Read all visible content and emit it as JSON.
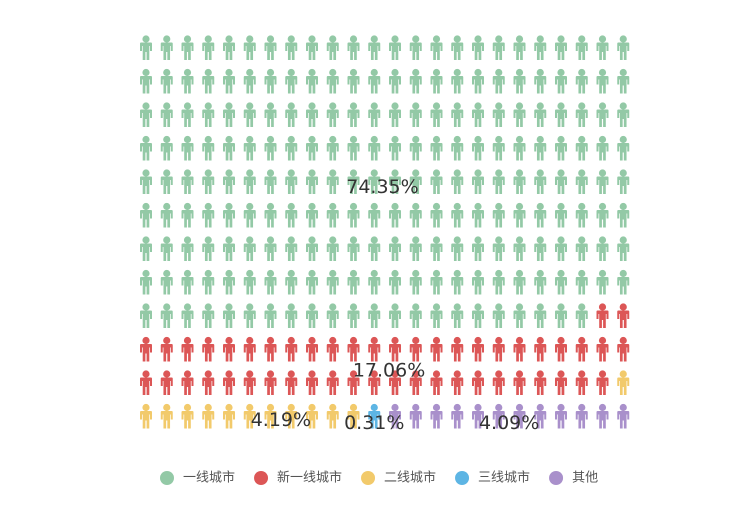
{
  "chart_data": {
    "type": "waffle",
    "categories": [
      "一线城市",
      "新一线城市",
      "二线城市",
      "三线城市",
      "其他"
    ],
    "values": [
      74.35,
      17.06,
      4.19,
      0.31,
      4.09
    ],
    "value_labels": [
      "74.35%",
      "17.06%",
      "4.19%",
      "0.31%",
      "4.09%"
    ],
    "colors": [
      "#93c9a6",
      "#dc5656",
      "#f2ca6b",
      "#5db5e4",
      "#a990cb"
    ],
    "legend": "bottom"
  }
}
